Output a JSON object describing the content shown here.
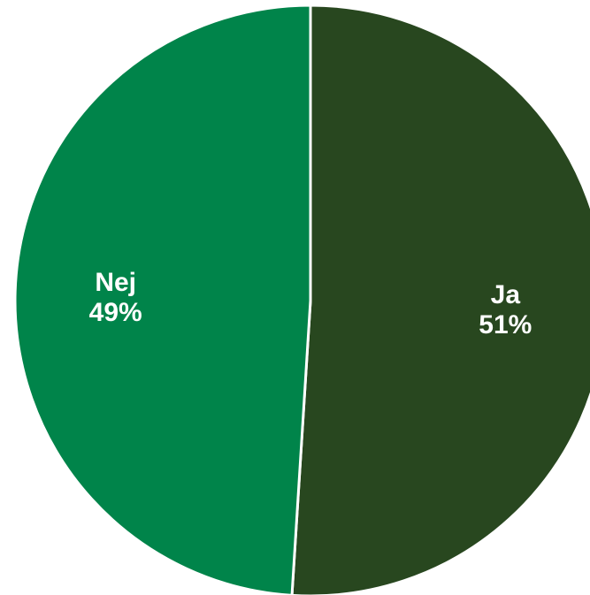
{
  "chart_data": {
    "type": "pie",
    "slices": [
      {
        "label": "Ja",
        "value": 51,
        "value_label": "51%",
        "color": "#28471f"
      },
      {
        "label": "Nej",
        "value": 49,
        "value_label": "49%",
        "color": "#00844a"
      }
    ],
    "start_angle_deg": 0,
    "direction": "clockwise",
    "legend": "none"
  }
}
